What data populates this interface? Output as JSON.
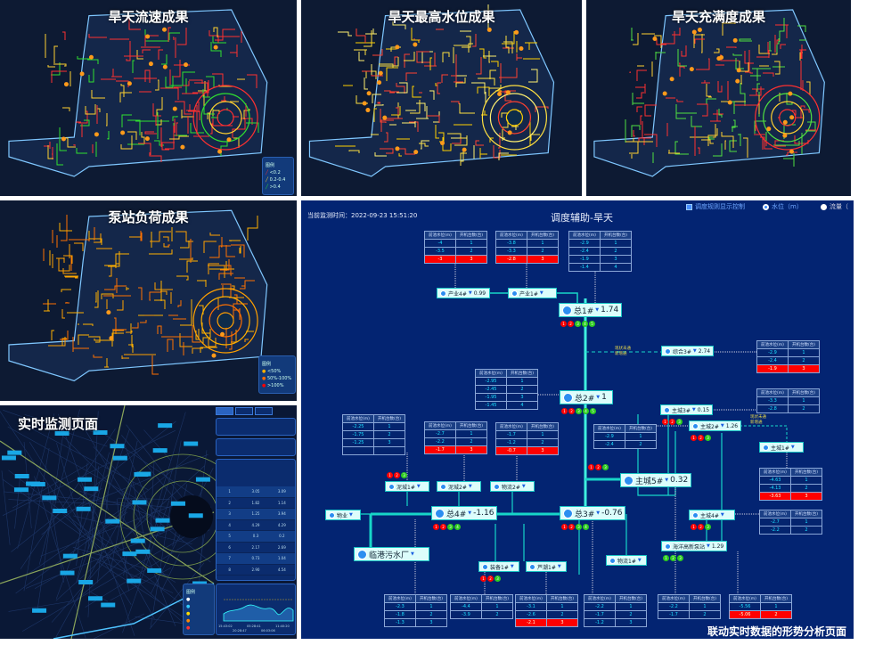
{
  "panels": {
    "flow": {
      "title": "旱天流速成果",
      "legend": {
        "title": "图例",
        "items": [
          "<0.2",
          "0.2-0.4",
          ">0.4"
        ],
        "colors": [
          "#ff3030",
          "#ffd030",
          "#30e030"
        ]
      }
    },
    "level": {
      "title": "旱天最高水位成果"
    },
    "fill": {
      "title": "旱天充满度成果"
    },
    "pump": {
      "title": "泵站负荷成果",
      "legend": {
        "title": "图例",
        "items": [
          "<50%",
          "50%-100%",
          ">100%"
        ],
        "colors": [
          "#ffb000",
          "#ff6a00",
          "#ff0000"
        ]
      }
    },
    "monitor": {
      "title": "实时监测页面",
      "legend_title": "图例",
      "table_rows": [
        [
          "1",
          "3.05",
          "3.09"
        ],
        [
          "2",
          "1.82",
          "1.14"
        ],
        [
          "3",
          "1.25",
          "3.94"
        ],
        [
          "4",
          "4.29",
          "4.29"
        ],
        [
          "5",
          "0.3",
          "0.2"
        ],
        [
          "6",
          "2.17",
          "2.69"
        ],
        [
          "7",
          "0.73",
          "1.04"
        ],
        [
          "8",
          "2.90",
          "4.54"
        ]
      ],
      "chart_ticks": [
        "15:43:02",
        "20:28:47",
        "05:28:41",
        "06:03:06",
        "11:40:20"
      ]
    }
  },
  "schematic": {
    "monitor_time": "当前监测时间：2022-09-23 15:51:20",
    "title": "调度辅助-旱天",
    "controls": {
      "rule_display": "调度规则显示控制",
      "water_level": "水位（m）",
      "flow": "流量（"
    },
    "annotation": [
      "现状未通",
      "新增通"
    ],
    "caption": "联动实时数据的形势分析页面",
    "table_headers": [
      "前池水位(m)",
      "开机台数(台)"
    ],
    "tables": [
      {
        "rows": [
          [
            "-4",
            "1"
          ],
          [
            "-3.5",
            "2"
          ],
          [
            "-3",
            "3"
          ]
        ],
        "red": 2
      },
      {
        "rows": [
          [
            "-3.8",
            "1"
          ],
          [
            "-3.3",
            "2"
          ],
          [
            "-2.8",
            "3"
          ]
        ],
        "red": 2
      },
      {
        "rows": [
          [
            "-2.9",
            "1"
          ],
          [
            "-2.4",
            "2"
          ],
          [
            "-1.9",
            "3"
          ],
          [
            "-1.4",
            "4"
          ]
        ],
        "red": -1
      },
      {
        "rows": [
          [
            "-2.9",
            "1"
          ],
          [
            "-2.4",
            "2"
          ],
          [
            "-1.9",
            "3"
          ]
        ],
        "red": 2
      },
      {
        "rows": [
          [
            "-2.95",
            "1"
          ],
          [
            "-2.45",
            "2"
          ],
          [
            "-1.95",
            "3"
          ],
          [
            "-1.45",
            "4"
          ]
        ],
        "red": -1
      },
      {
        "rows": [
          [
            "-3.3",
            "1"
          ],
          [
            "-2.8",
            "2"
          ]
        ],
        "red": -1
      },
      {
        "rows": [
          [
            "-2.25",
            "1"
          ],
          [
            "-1.75",
            "2"
          ],
          [
            "-1.25",
            "3"
          ],
          [
            "",
            ""
          ]
        ],
        "red": -1
      },
      {
        "rows": [
          [
            "-2.7",
            "1"
          ],
          [
            "-2.2",
            "2"
          ],
          [
            "-1.7",
            "3"
          ]
        ],
        "red": 2
      },
      {
        "rows": [
          [
            "-1.7",
            "1"
          ],
          [
            "-1.2",
            "2"
          ],
          [
            "-0.7",
            "3"
          ]
        ],
        "red": 2
      },
      {
        "rows": [
          [
            "-2.9",
            "1"
          ],
          [
            "-2.4",
            "2"
          ]
        ],
        "red": -1
      },
      {
        "rows": [
          [
            "-4.63",
            "1"
          ],
          [
            "-4.13",
            "2"
          ],
          [
            "-3.63",
            "3"
          ]
        ],
        "red": 2
      },
      {
        "rows": [
          [
            "-2.7",
            "1"
          ],
          [
            "-2.2",
            "2"
          ]
        ],
        "red": -1
      },
      {
        "rows": [
          [
            "-2.3",
            "1"
          ],
          [
            "-1.8",
            "2"
          ],
          [
            "-1.3",
            "3"
          ]
        ],
        "red": -1
      },
      {
        "rows": [
          [
            "-4.4",
            "1"
          ],
          [
            "-3.9",
            "2"
          ]
        ],
        "red": -1
      },
      {
        "rows": [
          [
            "-3.1",
            "1"
          ],
          [
            "-2.6",
            "2"
          ],
          [
            "-2.1",
            "3"
          ]
        ],
        "red": 2
      },
      {
        "rows": [
          [
            "-2.2",
            "1"
          ],
          [
            "-1.7",
            "2"
          ],
          [
            "-1.2",
            "3"
          ]
        ],
        "red": -1
      },
      {
        "rows": [
          [
            "-2.2",
            "1"
          ],
          [
            "-1.7",
            "2"
          ]
        ],
        "red": -1
      },
      {
        "rows": [
          [
            "-5.56",
            "1"
          ],
          [
            "-5.06",
            "2"
          ]
        ],
        "red": 1
      }
    ],
    "nodes": [
      {
        "label": "产业4#",
        "value": "0.99",
        "lights": ""
      },
      {
        "label": "产业1#",
        "value": "",
        "lights": ""
      },
      {
        "label": "总1#",
        "value": "1.74",
        "lights": "rrggg"
      },
      {
        "label": "综合3#",
        "value": "2.74",
        "lights": ""
      },
      {
        "label": "总2#",
        "value": "1",
        "lights": "rrggg"
      },
      {
        "label": "主城3#",
        "value": "0.15",
        "lights": "rrg"
      },
      {
        "label": "主城2#",
        "value": "1.26",
        "lights": "rrg"
      },
      {
        "label": "主城1#",
        "value": "",
        "lights": ""
      },
      {
        "label": "主城5#",
        "value": "0.32",
        "lights": "rrg"
      },
      {
        "label": "泥城1#",
        "value": "",
        "lights": "rrg"
      },
      {
        "label": "泥城2#",
        "value": "",
        "lights": ""
      },
      {
        "label": "物流2#",
        "value": "",
        "lights": ""
      },
      {
        "label": "物业",
        "value": "",
        "lights": ""
      },
      {
        "label": "总4#",
        "value": "-1.16",
        "lights": "rrgg"
      },
      {
        "label": "总3#",
        "value": "-0.76",
        "lights": "rrgg"
      },
      {
        "label": "主城4#",
        "value": "",
        "lights": "rrg"
      },
      {
        "label": "海洋高新泵站",
        "value": "1.29",
        "lights": "ggg"
      },
      {
        "label": "临港污水厂",
        "value": "",
        "lights": ""
      },
      {
        "label": "装备1#",
        "value": "",
        "lights": "rrg"
      },
      {
        "label": "芦潮1#",
        "value": "",
        "lights": ""
      },
      {
        "label": "物流1#",
        "value": "",
        "lights": ""
      }
    ]
  }
}
